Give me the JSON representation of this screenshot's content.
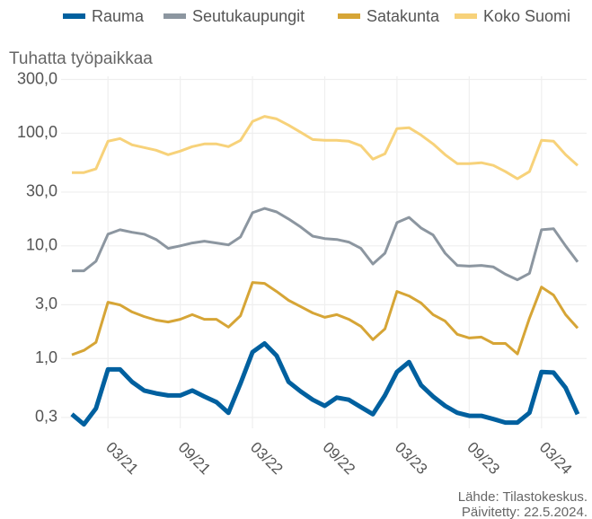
{
  "chart_data": {
    "type": "line",
    "y_label": "Tuhatta työpaikkaa",
    "source": "Lähde: Tilastokeskus.",
    "updated": "Päivitetty: 22.5.2024.",
    "categories": [
      null,
      null,
      null,
      "03/21",
      null,
      null,
      null,
      null,
      null,
      "09/21",
      null,
      null,
      null,
      null,
      null,
      "03/22",
      null,
      null,
      null,
      null,
      null,
      "09/22",
      null,
      null,
      null,
      null,
      null,
      "03/23",
      null,
      null,
      null,
      null,
      null,
      "09/23",
      null,
      null,
      null,
      null,
      null,
      "03/24",
      null,
      null,
      null
    ],
    "log_scale": true,
    "grid": true,
    "legend": "top",
    "ylim": [
      0.24,
      320
    ],
    "yticks": [
      {
        "value": 0.3,
        "label": "0,3"
      },
      {
        "value": 1,
        "label": "1,0"
      },
      {
        "value": 3,
        "label": "3,0"
      },
      {
        "value": 10,
        "label": "10,0"
      },
      {
        "value": 30,
        "label": "30,0"
      },
      {
        "value": 100,
        "label": "100,0"
      },
      {
        "value": 300,
        "label": "300,0"
      }
    ],
    "series": [
      {
        "name": "Rauma",
        "color": "#00609f",
        "values": [
          0.32,
          0.26,
          0.36,
          0.8,
          0.8,
          0.62,
          0.52,
          0.49,
          0.47,
          0.47,
          0.52,
          0.46,
          0.41,
          0.33,
          0.6,
          1.14,
          1.36,
          1.06,
          0.62,
          0.51,
          0.43,
          0.38,
          0.45,
          0.43,
          0.37,
          0.32,
          0.47,
          0.76,
          0.93,
          0.58,
          0.46,
          0.38,
          0.33,
          0.31,
          0.31,
          0.29,
          0.27,
          0.27,
          0.33,
          0.76,
          0.75,
          0.55,
          0.32
        ]
      },
      {
        "name": "Seutukaupungit",
        "color": "#8c96a0",
        "values": [
          6.0,
          6.0,
          7.3,
          12.7,
          13.9,
          13.2,
          12.7,
          11.4,
          9.5,
          10.0,
          10.6,
          11.0,
          10.6,
          10.2,
          12.0,
          19.7,
          21.5,
          20.0,
          17.3,
          14.7,
          12.2,
          11.6,
          11.4,
          10.8,
          9.5,
          6.9,
          8.6,
          16.1,
          17.9,
          14.4,
          12.5,
          8.6,
          6.7,
          6.6,
          6.7,
          6.5,
          5.6,
          5.0,
          5.7,
          13.9,
          14.2,
          10.0,
          7.2
        ]
      },
      {
        "name": "Satakunta",
        "color": "#d6a536",
        "values": [
          1.08,
          1.18,
          1.39,
          3.16,
          2.99,
          2.59,
          2.36,
          2.19,
          2.11,
          2.23,
          2.45,
          2.23,
          2.23,
          1.9,
          2.4,
          4.73,
          4.64,
          3.94,
          3.28,
          2.89,
          2.54,
          2.32,
          2.45,
          2.23,
          1.93,
          1.47,
          1.83,
          3.94,
          3.59,
          3.11,
          2.45,
          2.15,
          1.64,
          1.52,
          1.55,
          1.36,
          1.36,
          1.1,
          2.28,
          4.31,
          3.66,
          2.45,
          1.86
        ]
      },
      {
        "name": "Koko Suomi",
        "color": "#f7d27a",
        "values": [
          44.7,
          44.7,
          48.2,
          84.8,
          89.6,
          78.9,
          74.6,
          70.6,
          64.5,
          69.4,
          76.0,
          80.3,
          80.3,
          76.0,
          86.4,
          127,
          141,
          134,
          118,
          102,
          87.9,
          86.4,
          86.4,
          84.8,
          77.4,
          58.9,
          65.6,
          110,
          112,
          96.4,
          80.3,
          64.5,
          53.7,
          53.7,
          54.7,
          51.8,
          45.6,
          39.4,
          45.6,
          86.4,
          84.8,
          64.5,
          51.8
        ]
      }
    ]
  }
}
